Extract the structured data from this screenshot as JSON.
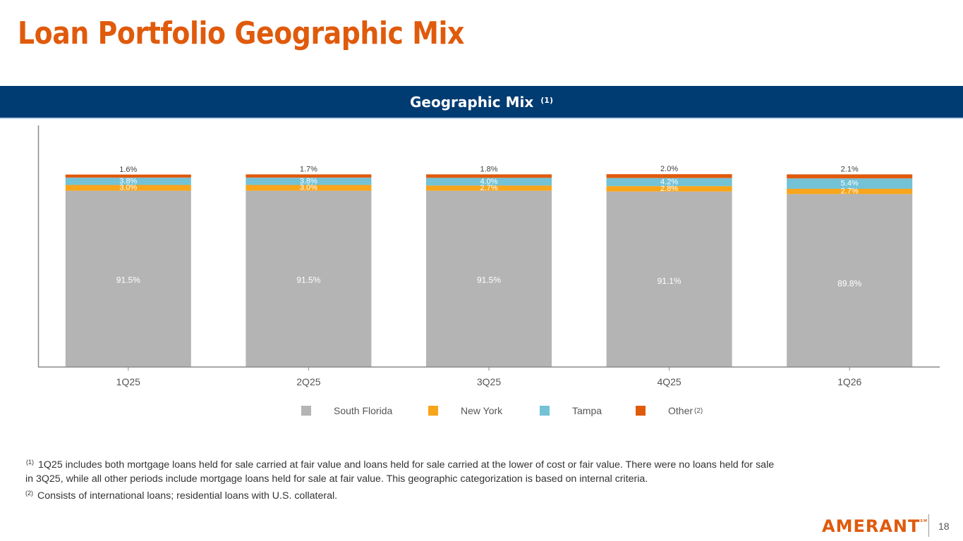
{
  "page": {
    "title": "Loan Portfolio Geographic Mix",
    "banner": {
      "label": "Geographic Mix",
      "footnote_ref": "(1)"
    },
    "footnotes": [
      {
        "ref": "(1)",
        "lines": [
          "1Q25 includes both mortgage loans held for sale carried at fair value and loans held for sale carried at the lower of cost  or fair value. There were no loans held for sale",
          "in 3Q25, while all other periods include mortgage loans held for sale at fair value. This geographic categorization is based on internal criteria."
        ]
      },
      {
        "ref": "(2)",
        "lines": [
          "Consists of international loans; residential loans with U.S. collateral."
        ]
      }
    ],
    "footer": {
      "brand": "AMERANT",
      "brand_mark": "SM",
      "page_number": "18"
    }
  },
  "colors": {
    "title": "#e05a0c",
    "banner": "#003b71",
    "south_florida": "#b4b4b4",
    "new_york": "#f8a51b",
    "tampa": "#73c2d6",
    "other": "#e05a0c"
  },
  "chart_data": {
    "type": "bar",
    "stacked": true,
    "title": "Geographic Mix",
    "xlabel": "",
    "ylabel": "",
    "ylim": [
      0,
      100
    ],
    "grid": false,
    "legend_position": "bottom",
    "categories": [
      "1Q25",
      "2Q25",
      "3Q25",
      "4Q25",
      "1Q26"
    ],
    "series": [
      {
        "name": "South Florida",
        "key": "south_florida",
        "values": [
          91.5,
          91.5,
          91.5,
          91.1,
          89.8
        ],
        "labels": [
          "91.5%",
          "91.5%",
          "91.5%",
          "91.1%",
          "89.8%"
        ]
      },
      {
        "name": "New York",
        "key": "new_york",
        "values": [
          3.0,
          3.0,
          2.7,
          2.8,
          2.7
        ],
        "labels": [
          "3.0%",
          "3.0%",
          "2.7%",
          "2.8%",
          "2.7%"
        ]
      },
      {
        "name": "Tampa",
        "key": "tampa",
        "values": [
          3.8,
          3.8,
          4.0,
          4.2,
          5.4
        ],
        "labels": [
          "3.8%",
          "3.8%",
          "4.0%",
          "4.2%",
          "5.4%"
        ]
      },
      {
        "name": "Other",
        "key": "other",
        "legend_ref": "(2)",
        "values": [
          1.6,
          1.7,
          1.8,
          2.0,
          2.1
        ],
        "labels": [
          "1.6%",
          "1.7%",
          "1.8%",
          "2.0%",
          "2.1%"
        ]
      }
    ]
  }
}
